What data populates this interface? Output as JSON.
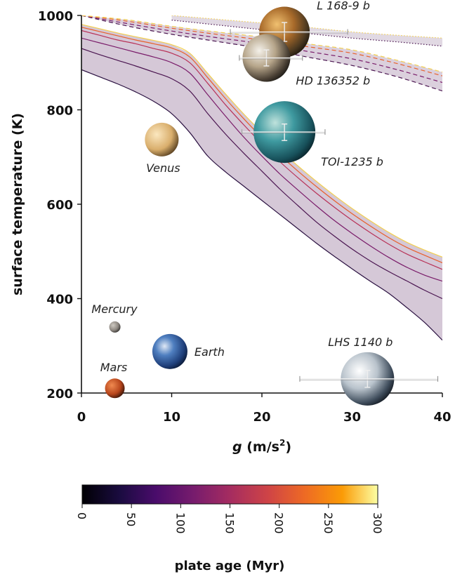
{
  "chart_data": {
    "type": "line",
    "xlabel_var": "g",
    "xlabel_unit": "(m/s",
    "xlabel_sup": "2",
    "xlabel_close": ")",
    "ylabel": "surface temperature (K)",
    "xlim": [
      0,
      40
    ],
    "ylim": [
      200,
      1000
    ],
    "x_ticks": [
      "0",
      "10",
      "20",
      "30",
      "40"
    ],
    "y_ticks": [
      "200",
      "400",
      "600",
      "800",
      "1000"
    ],
    "grid": false,
    "solid_band_x": [
      0,
      2,
      4,
      6,
      8,
      10,
      12,
      14,
      16,
      18,
      20,
      22,
      24,
      26,
      28,
      30,
      32,
      34,
      36,
      38,
      40
    ],
    "solid_series": [
      {
        "plate_age_myr": 0,
        "color": "#2a1040",
        "values": [
          885,
          870,
          855,
          838,
          818,
          792,
          752,
          702,
          668,
          638,
          608,
          578,
          548,
          518,
          490,
          463,
          437,
          412,
          382,
          350,
          312
        ]
      },
      {
        "plate_age_myr": 50,
        "color": "#4a1550",
        "values": [
          930,
          917,
          905,
          893,
          880,
          866,
          840,
          792,
          748,
          708,
          670,
          632,
          597,
          563,
          533,
          505,
          480,
          458,
          438,
          418,
          400
        ]
      },
      {
        "plate_age_myr": 100,
        "color": "#7a1c6a",
        "values": [
          952,
          942,
          932,
          922,
          912,
          900,
          878,
          832,
          786,
          742,
          702,
          664,
          630,
          597,
          566,
          538,
          512,
          488,
          467,
          450,
          437
        ]
      },
      {
        "plate_age_myr": 150,
        "color": "#b83258",
        "values": [
          968,
          958,
          948,
          940,
          930,
          920,
          900,
          856,
          810,
          768,
          728,
          690,
          656,
          624,
          594,
          566,
          540,
          516,
          495,
          478,
          462
        ]
      },
      {
        "plate_age_myr": 200,
        "color": "#e8602c",
        "values": [
          975,
          966,
          957,
          948,
          940,
          931,
          912,
          868,
          823,
          781,
          741,
          704,
          670,
          638,
          608,
          580,
          554,
          530,
          509,
          492,
          476
        ]
      },
      {
        "plate_age_myr": 300,
        "color": "#f3d050",
        "values": [
          981,
          972,
          963,
          955,
          947,
          938,
          920,
          877,
          833,
          791,
          752,
          715,
          681,
          649,
          619,
          591,
          565,
          541,
          520,
          503,
          488
        ]
      }
    ],
    "dashed_band_x": [
      0,
      5,
      10,
      15,
      20,
      25,
      30,
      35,
      40
    ],
    "dashed_series": [
      {
        "plate_age_myr": 0,
        "color": "#4a1550",
        "values": [
          1000,
          978,
          960,
          945,
          930,
          912,
          894,
          870,
          840
        ]
      },
      {
        "plate_age_myr": 100,
        "color": "#7a1c6a",
        "values": [
          1000,
          983,
          967,
          953,
          940,
          924,
          908,
          885,
          858
        ]
      },
      {
        "plate_age_myr": 200,
        "color": "#e8602c",
        "values": [
          1000,
          988,
          973,
          960,
          948,
          934,
          920,
          898,
          872
        ]
      },
      {
        "plate_age_myr": 300,
        "color": "#f3d050",
        "values": [
          1000,
          991,
          977,
          965,
          954,
          940,
          927,
          905,
          880
        ]
      }
    ],
    "dotted_band_x": [
      10,
      15,
      20,
      25,
      30,
      35,
      40
    ],
    "dotted_series": [
      {
        "plate_age_myr": 0,
        "color": "#4a1550",
        "values": [
          990,
          980,
          970,
          962,
          952,
          944,
          935
        ]
      },
      {
        "plate_age_myr": 300,
        "color": "#f3d050",
        "values": [
          1000,
          992,
          984,
          975,
          965,
          958,
          952
        ]
      }
    ],
    "planets": [
      {
        "name": "Mercury",
        "g": 3.7,
        "T": 340,
        "rad": 8,
        "palette": "mercury",
        "label": "Mercury",
        "label_pos": "above-left"
      },
      {
        "name": "Venus",
        "g": 8.9,
        "T": 737,
        "rad": 24,
        "palette": "venus",
        "label": "Venus",
        "label_pos": "below"
      },
      {
        "name": "Earth",
        "g": 9.8,
        "T": 288,
        "rad": 25,
        "palette": "earth",
        "label": "Earth",
        "label_pos": "right"
      },
      {
        "name": "Mars",
        "g": 3.7,
        "T": 210,
        "rad": 14,
        "palette": "mars",
        "label": "Mars",
        "label_pos": "above-left"
      },
      {
        "name": "L 168-9 b",
        "g": 22.5,
        "T": 965,
        "rad": 36,
        "palette": "lava",
        "label": "L 168-9 b",
        "label_pos": "upper-right",
        "xerr": [
          16.5,
          29.5
        ],
        "yerr": [
          945,
          985
        ]
      },
      {
        "name": "HD 136352 b",
        "g": 20.5,
        "T": 910,
        "rad": 34,
        "palette": "desert",
        "label": "HD 136352 b",
        "label_pos": "lower-right",
        "xerr": [
          17.5,
          24.5
        ],
        "yerr": [
          893,
          927
        ]
      },
      {
        "name": "TOI-1235 b",
        "g": 22.5,
        "T": 753,
        "rad": 44,
        "palette": "ocean",
        "label": "TOI-1235 b",
        "label_pos": "lower-right",
        "xerr": [
          17.8,
          27.0
        ],
        "yerr": [
          735,
          770
        ]
      },
      {
        "name": "LHS 1140 b",
        "g": 31.7,
        "T": 230,
        "rad": 38,
        "palette": "ice",
        "label": "LHS 1140 b",
        "label_pos": "above",
        "xerr": [
          24.2,
          39.5
        ],
        "yerr": [
          212,
          248
        ]
      }
    ],
    "colorbar": {
      "label": "plate age (Myr)",
      "range": [
        0,
        300
      ],
      "ticks": [
        "0",
        "50",
        "100",
        "150",
        "200",
        "250",
        "300"
      ],
      "colormap": "inferno"
    }
  }
}
